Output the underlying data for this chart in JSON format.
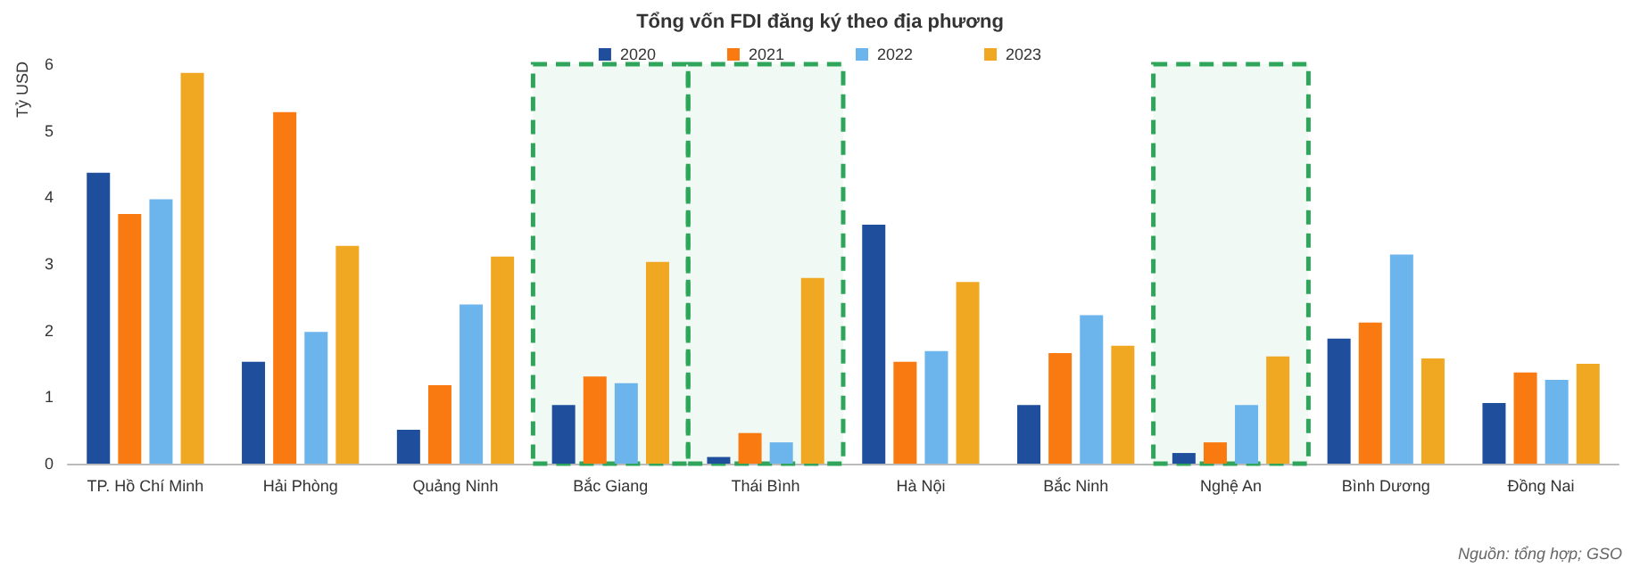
{
  "chart_data": {
    "type": "bar",
    "title": "Tổng vốn FDI đăng ký theo địa phương",
    "ylabel": "Tỷ USD",
    "categories": [
      "TP. Hồ Chí Minh",
      "Hải Phòng",
      "Quảng Ninh",
      "Bắc Giang",
      "Thái Bình",
      "Hà Nội",
      "Bắc Ninh",
      "Nghệ An",
      "Bình Dương",
      "Đồng Nai"
    ],
    "series": [
      {
        "name": "2020",
        "color": "#1f4e9c",
        "values": [
          4.37,
          1.53,
          0.51,
          0.88,
          0.1,
          3.59,
          0.88,
          0.16,
          1.88,
          0.91
        ]
      },
      {
        "name": "2021",
        "color": "#f97a10",
        "values": [
          3.75,
          5.28,
          1.18,
          1.31,
          0.46,
          1.53,
          1.66,
          0.32,
          2.12,
          1.37
        ]
      },
      {
        "name": "2022",
        "color": "#6cb4ec",
        "values": [
          3.97,
          1.98,
          2.39,
          1.21,
          0.32,
          1.69,
          2.23,
          0.88,
          3.14,
          1.26
        ]
      },
      {
        "name": "2023",
        "color": "#f0a823",
        "values": [
          5.87,
          3.27,
          3.11,
          3.03,
          2.79,
          2.73,
          1.77,
          1.61,
          1.58,
          1.5
        ]
      }
    ],
    "ylim": [
      0,
      6
    ],
    "yticks": [
      0,
      1,
      2,
      3,
      4,
      5,
      6
    ],
    "grid": false,
    "legend": "top",
    "bands": [
      {
        "axis": "x",
        "from": "Bắc Giang",
        "to": "Bắc Giang",
        "color": "#2ea55a"
      },
      {
        "axis": "x",
        "from": "Thái Bình",
        "to": "Thái Bình",
        "color": "#2ea55a"
      },
      {
        "axis": "x",
        "from": "Nghệ An",
        "to": "Nghệ An",
        "color": "#2ea55a"
      }
    ],
    "annotations": [
      "Nguồn: tổng hợp; GSO"
    ]
  }
}
